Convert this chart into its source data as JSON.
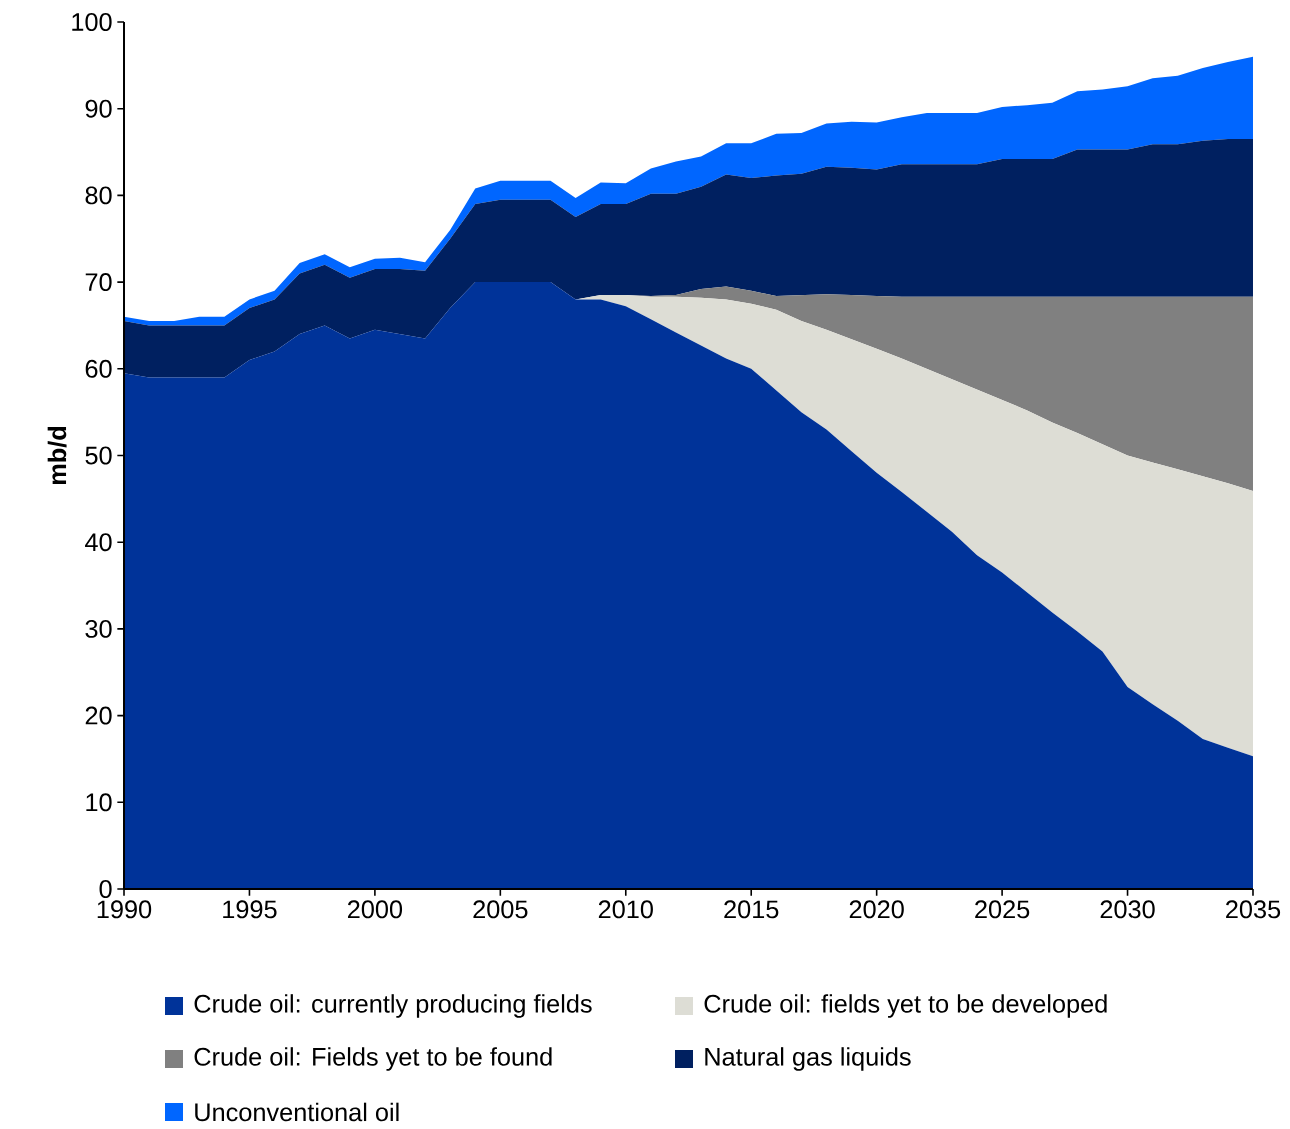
{
  "chart_data": {
    "type": "area",
    "stacked": true,
    "ylabel": "mb/d",
    "legend": "bottom",
    "grid": false,
    "x": [
      1990,
      1991,
      1992,
      1993,
      1994,
      1995,
      1996,
      1997,
      1998,
      1999,
      2000,
      2001,
      2002,
      2003,
      2004,
      2005,
      2006,
      2007,
      2008,
      2009,
      2010,
      2011,
      2012,
      2013,
      2014,
      2015,
      2016,
      2017,
      2018,
      2019,
      2020,
      2021,
      2022,
      2023,
      2024,
      2025,
      2026,
      2027,
      2028,
      2029,
      2030,
      2031,
      2032,
      2033,
      2034,
      2035
    ],
    "xlim": [
      1990,
      2035
    ],
    "xticks": [
      1990,
      1995,
      2000,
      2005,
      2010,
      2015,
      2020,
      2025,
      2030,
      2035
    ],
    "ylim": [
      0,
      100
    ],
    "yticks": [
      0,
      10,
      20,
      30,
      40,
      50,
      60,
      70,
      80,
      90,
      100
    ],
    "series": [
      {
        "name": "Crude oil: currently producing fields",
        "color": "#003399",
        "values": [
          59.5,
          59,
          59,
          59,
          59,
          61,
          62,
          64,
          65,
          63.5,
          64.5,
          64,
          63.5,
          67,
          70,
          70,
          70,
          70,
          68,
          68,
          67.2,
          65.7,
          64.2,
          62.7,
          61.2,
          60,
          57.5,
          55,
          53,
          50.5,
          48,
          45.8,
          43.5,
          41.2,
          38.5,
          36.5,
          34.2,
          31.9,
          29.7,
          27.4,
          23.3,
          21.3,
          19.4,
          17.3,
          16.3,
          15.3
        ]
      },
      {
        "name": "Crude oil: fields yet to be developed",
        "color": "#ddddd5",
        "values": [
          0,
          0,
          0,
          0,
          0,
          0,
          0,
          0,
          0,
          0,
          0,
          0,
          0,
          0,
          0,
          0,
          0,
          0,
          0,
          0.5,
          1.3,
          2.6,
          4.1,
          5.5,
          6.8,
          7.5,
          9.3,
          10.5,
          11.5,
          12.9,
          14.3,
          15.4,
          16.5,
          17.6,
          19.1,
          19.9,
          21,
          21.9,
          22.9,
          23.9,
          26.7,
          27.9,
          29,
          30.3,
          30.5,
          30.6
        ]
      },
      {
        "name": "Crude oil: Fields yet to be found",
        "color": "#808080",
        "values": [
          0,
          0,
          0,
          0,
          0,
          0,
          0,
          0,
          0,
          0,
          0,
          0,
          0,
          0,
          0,
          0,
          0,
          0,
          0,
          0,
          0,
          0.1,
          0.2,
          1.0,
          1.5,
          1.5,
          1.6,
          3.0,
          4.1,
          5.1,
          6.1,
          7.1,
          8.3,
          9.5,
          10.7,
          11.9,
          13.1,
          14.5,
          15.7,
          17,
          18.3,
          19.1,
          19.9,
          20.7,
          21.5,
          22.4
        ]
      },
      {
        "name": "Natural gas liquids",
        "color": "#002060",
        "values": [
          6,
          6,
          6,
          6,
          6,
          6,
          6,
          7,
          7,
          7,
          7,
          7.5,
          7.8,
          8,
          9,
          9.5,
          9.5,
          9.5,
          9.5,
          10.5,
          10.5,
          11.8,
          11.7,
          11.8,
          12.9,
          13,
          13.9,
          14,
          14.7,
          14.7,
          14.6,
          15.3,
          15.3,
          15.3,
          15.3,
          15.9,
          15.9,
          15.9,
          17,
          17,
          17,
          17.6,
          17.6,
          18,
          18.2,
          18.2
        ]
      },
      {
        "name": "Unconventional oil",
        "color": "#0066ff",
        "values": [
          0.5,
          0.5,
          0.5,
          1,
          1,
          1,
          1,
          1.2,
          1.2,
          1.2,
          1.2,
          1.3,
          1,
          1,
          1.8,
          2.2,
          2.2,
          2.2,
          2.2,
          2.5,
          2.4,
          2.9,
          3.7,
          3.5,
          3.6,
          4,
          4.8,
          4.7,
          5,
          5.3,
          5.4,
          5.4,
          5.9,
          5.9,
          5.9,
          6,
          6.2,
          6.5,
          6.7,
          6.9,
          7.3,
          7.6,
          7.9,
          8.4,
          8.9,
          9.5
        ]
      }
    ]
  }
}
